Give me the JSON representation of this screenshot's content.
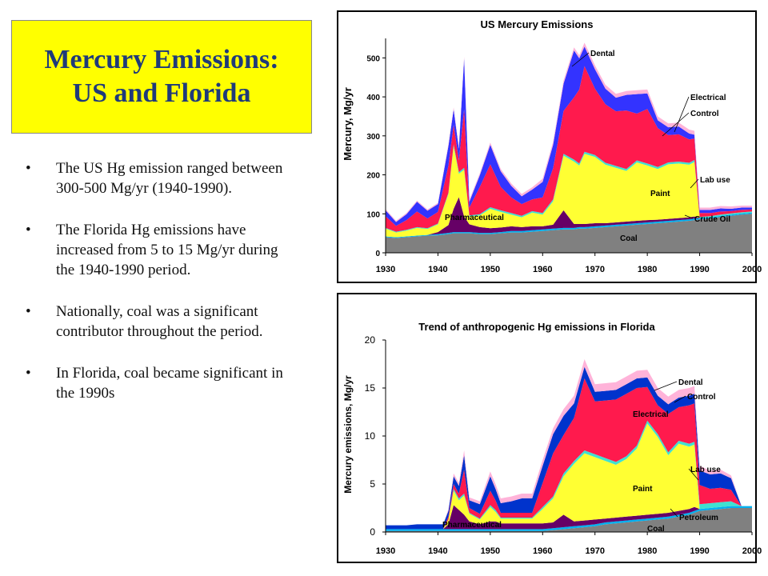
{
  "slide": {
    "title_line1": "Mercury Emissions:",
    "title_line2": "US and Florida",
    "bullets": [
      "The US Hg emission ranged between 300-500 Mg/yr (1940-1990).",
      "The Florida Hg emissions have increased from 5 to 15 Mg/yr during the 1940-1990 period.",
      "Nationally, coal was a significant contributor throughout the period.",
      "In Florida, coal became significant in the 1990s"
    ]
  },
  "chart_data": [
    {
      "type": "area",
      "stacked": true,
      "title": "US Mercury Emissions",
      "xlabel": "",
      "ylabel": "Mercury, Mg/yr",
      "xlim": [
        1930,
        2000
      ],
      "ylim": [
        0,
        550
      ],
      "xticks": [
        "1930",
        "1940",
        "1950",
        "1960",
        "1970",
        "1980",
        "1990",
        "2000"
      ],
      "yticks": [
        "0",
        "100",
        "200",
        "300",
        "400",
        "500"
      ],
      "grid": false,
      "x": [
        1930,
        1932,
        1934,
        1936,
        1938,
        1940,
        1942,
        1943,
        1944,
        1945,
        1946,
        1948,
        1950,
        1952,
        1954,
        1956,
        1958,
        1960,
        1962,
        1964,
        1966,
        1967,
        1968,
        1970,
        1972,
        1974,
        1976,
        1978,
        1980,
        1982,
        1984,
        1986,
        1988,
        1989,
        1990,
        1992,
        1994,
        1996,
        1998,
        2000
      ],
      "series": [
        {
          "name": "Coal",
          "color": "#808080",
          "values": [
            40,
            38,
            40,
            42,
            44,
            45,
            48,
            50,
            50,
            50,
            50,
            48,
            48,
            50,
            52,
            52,
            54,
            56,
            58,
            60,
            60,
            62,
            62,
            64,
            66,
            68,
            70,
            72,
            74,
            76,
            78,
            80,
            82,
            84,
            86,
            88,
            92,
            95,
            98,
            100
          ]
        },
        {
          "name": "Crude Oil",
          "color": "#00b0f0",
          "values": [
            2,
            2,
            2,
            2,
            2,
            3,
            3,
            3,
            3,
            3,
            3,
            3,
            3,
            3,
            4,
            4,
            4,
            4,
            4,
            4,
            4,
            4,
            4,
            4,
            4,
            4,
            4,
            4,
            4,
            4,
            4,
            4,
            4,
            4,
            3,
            3,
            3,
            3,
            3,
            3
          ]
        },
        {
          "name": "Pharmaceutical",
          "color": "#660066",
          "values": [
            0,
            0,
            0,
            0,
            0,
            5,
            20,
            60,
            90,
            40,
            20,
            15,
            12,
            12,
            12,
            10,
            10,
            8,
            10,
            45,
            10,
            8,
            8,
            8,
            6,
            6,
            6,
            6,
            6,
            5,
            5,
            5,
            5,
            5,
            0,
            0,
            0,
            0,
            0,
            0
          ]
        },
        {
          "name": "Paint",
          "color": "#ffff33",
          "values": [
            20,
            12,
            15,
            20,
            15,
            20,
            80,
            160,
            60,
            120,
            20,
            30,
            50,
            40,
            30,
            25,
            35,
            30,
            60,
            140,
            160,
            150,
            180,
            170,
            150,
            140,
            130,
            150,
            140,
            130,
            140,
            140,
            135,
            140,
            0,
            0,
            0,
            0,
            0,
            0
          ]
        },
        {
          "name": "Lab use",
          "color": "#40e0d0",
          "values": [
            2,
            2,
            2,
            2,
            2,
            2,
            3,
            5,
            4,
            5,
            3,
            3,
            4,
            4,
            4,
            4,
            4,
            4,
            5,
            5,
            5,
            5,
            5,
            5,
            5,
            5,
            5,
            5,
            5,
            5,
            5,
            5,
            5,
            5,
            3,
            3,
            3,
            3,
            3,
            3
          ]
        },
        {
          "name": "Control",
          "color": "#ff1a4d",
          "values": [
            30,
            15,
            25,
            40,
            25,
            30,
            70,
            50,
            30,
            150,
            20,
            70,
            110,
            60,
            40,
            30,
            30,
            40,
            80,
            110,
            160,
            190,
            220,
            170,
            150,
            140,
            150,
            120,
            140,
            100,
            70,
            70,
            60,
            55,
            10,
            8,
            8,
            6,
            6,
            5
          ]
        },
        {
          "name": "Electrical",
          "color": "#3333ff",
          "values": [
            15,
            10,
            15,
            25,
            20,
            20,
            50,
            40,
            30,
            130,
            15,
            30,
            50,
            40,
            30,
            20,
            25,
            40,
            60,
            70,
            120,
            80,
            50,
            50,
            40,
            35,
            40,
            50,
            40,
            20,
            20,
            20,
            15,
            10,
            8,
            8,
            8,
            6,
            6,
            5
          ]
        },
        {
          "name": "Dental",
          "color": "#ffb3d9",
          "values": [
            3,
            3,
            3,
            3,
            3,
            3,
            5,
            5,
            5,
            5,
            5,
            5,
            6,
            6,
            6,
            6,
            6,
            8,
            8,
            8,
            8,
            8,
            10,
            10,
            10,
            10,
            10,
            10,
            10,
            10,
            10,
            10,
            10,
            10,
            6,
            6,
            6,
            6,
            5,
            5
          ]
        }
      ]
    },
    {
      "type": "area",
      "stacked": true,
      "title": "Trend of anthropogenic Hg emissions in Florida",
      "xlabel": "",
      "ylabel": "Mercury emissions, Mg/yr",
      "xlim": [
        1930,
        2000
      ],
      "ylim": [
        0,
        20
      ],
      "xticks": [
        "1930",
        "1940",
        "1950",
        "1960",
        "1970",
        "1980",
        "1990",
        "2000"
      ],
      "yticks": [
        "0",
        "5",
        "10",
        "15",
        "20"
      ],
      "grid": false,
      "x": [
        1930,
        1932,
        1934,
        1936,
        1938,
        1940,
        1941,
        1942,
        1943,
        1944,
        1945,
        1946,
        1948,
        1950,
        1951,
        1952,
        1954,
        1956,
        1958,
        1960,
        1962,
        1964,
        1966,
        1968,
        1970,
        1972,
        1974,
        1976,
        1978,
        1980,
        1982,
        1984,
        1986,
        1988,
        1989,
        1990,
        1992,
        1994,
        1996,
        1998,
        2000
      ],
      "series": [
        {
          "name": "Coal",
          "color": "#808080",
          "values": [
            0.1,
            0.1,
            0.1,
            0.1,
            0.1,
            0.1,
            0.1,
            0.1,
            0.1,
            0.1,
            0.1,
            0.1,
            0.1,
            0.1,
            0.1,
            0.1,
            0.1,
            0.1,
            0.1,
            0.1,
            0.2,
            0.3,
            0.4,
            0.5,
            0.6,
            0.8,
            0.9,
            1.0,
            1.1,
            1.2,
            1.3,
            1.4,
            1.6,
            1.8,
            2.0,
            2.2,
            2.3,
            2.4,
            2.5,
            2.5,
            2.5
          ]
        },
        {
          "name": "Petroleum",
          "color": "#00b0f0",
          "values": [
            0.2,
            0.2,
            0.2,
            0.2,
            0.2,
            0.2,
            0.2,
            0.2,
            0.2,
            0.2,
            0.2,
            0.2,
            0.2,
            0.2,
            0.2,
            0.2,
            0.2,
            0.2,
            0.2,
            0.2,
            0.2,
            0.2,
            0.2,
            0.2,
            0.2,
            0.2,
            0.2,
            0.2,
            0.2,
            0.2,
            0.2,
            0.2,
            0.2,
            0.2,
            0.2,
            0.2,
            0.2,
            0.2,
            0.2,
            0.2,
            0.2
          ]
        },
        {
          "name": "Pharmaceutical",
          "color": "#660066",
          "values": [
            0,
            0,
            0,
            0,
            0,
            0,
            0,
            0.5,
            2.5,
            2.0,
            1.5,
            0.8,
            0.5,
            0.8,
            0.8,
            0.6,
            0.6,
            0.6,
            0.6,
            0.6,
            0.6,
            1.3,
            0.5,
            0.5,
            0.5,
            0.4,
            0.4,
            0.4,
            0.4,
            0.4,
            0.4,
            0.4,
            0.4,
            0.4,
            0.4,
            0,
            0,
            0,
            0,
            0,
            0
          ]
        },
        {
          "name": "Paint",
          "color": "#ffff33",
          "values": [
            0,
            0,
            0,
            0,
            0,
            0,
            0,
            0.5,
            1.5,
            1.0,
            2.0,
            0.8,
            0.5,
            1.5,
            1.0,
            0.5,
            0.5,
            0.5,
            0.5,
            1.5,
            2.5,
            4.0,
            6.0,
            7.0,
            6.5,
            6.0,
            5.5,
            6.0,
            7.0,
            9.5,
            8.0,
            6.0,
            7.0,
            6.5,
            6.5,
            0,
            0,
            0,
            0,
            0,
            0
          ]
        },
        {
          "name": "Lab use",
          "color": "#40e0d0",
          "values": [
            0,
            0,
            0,
            0,
            0,
            0,
            0,
            0,
            0.2,
            0.2,
            0.2,
            0.1,
            0.1,
            0.2,
            0.2,
            0.1,
            0.1,
            0.1,
            0.1,
            0.2,
            0.2,
            0.3,
            0.3,
            0.3,
            0.3,
            0.3,
            0.3,
            0.3,
            0.3,
            0.3,
            0.3,
            0.3,
            0.3,
            0.3,
            0.3,
            0.5,
            0.5,
            0.5,
            0.5,
            0,
            0
          ]
        },
        {
          "name": "Electrical",
          "color": "#ff1a4d",
          "values": [
            0,
            0,
            0,
            0,
            0,
            0,
            0,
            0.3,
            0.5,
            0.5,
            2.5,
            0.5,
            0.5,
            1.5,
            1.0,
            0.5,
            0.5,
            0.5,
            0.5,
            2.5,
            4.5,
            4.0,
            4.5,
            7.5,
            5.5,
            6.0,
            6.5,
            6.5,
            6.0,
            3.5,
            3.0,
            4.0,
            3.5,
            4.0,
            4.0,
            2.0,
            1.5,
            1.5,
            1.2,
            0,
            0
          ]
        },
        {
          "name": "Control",
          "color": "#0033cc",
          "values": [
            0.4,
            0.4,
            0.4,
            0.5,
            0.5,
            0.5,
            0.5,
            0.6,
            0.8,
            0.8,
            1.5,
            0.8,
            1.0,
            1.5,
            1.2,
            1.0,
            1.2,
            1.5,
            1.5,
            1.8,
            2.0,
            2.0,
            1.5,
            1.2,
            1.0,
            1.0,
            1.0,
            1.0,
            1.0,
            1.0,
            1.0,
            1.0,
            1.0,
            1.0,
            1.0,
            1.5,
            1.5,
            1.5,
            1.2,
            0,
            0
          ]
        },
        {
          "name": "Dental",
          "color": "#ffb3d9",
          "values": [
            0,
            0,
            0,
            0,
            0,
            0,
            0,
            0.2,
            0.3,
            0.3,
            0.5,
            0.3,
            0.3,
            0.5,
            0.5,
            0.5,
            0.5,
            0.5,
            0.5,
            0.6,
            0.6,
            0.7,
            0.8,
            0.8,
            0.8,
            0.8,
            0.8,
            0.8,
            0.8,
            0.8,
            0.8,
            0.8,
            0.8,
            0.8,
            0.8,
            0.5,
            0.4,
            0.4,
            0.3,
            0,
            0
          ]
        }
      ]
    }
  ],
  "chart_labels": [
    [
      {
        "text": "Dental",
        "series": "Dental"
      },
      {
        "text": "Electrical",
        "series": "Electrical"
      },
      {
        "text": "Control",
        "series": "Control"
      },
      {
        "text": "Lab use",
        "series": "Lab use"
      },
      {
        "text": "Paint",
        "series": "Paint"
      },
      {
        "text": "Pharmaceutical",
        "series": "Pharmaceutical"
      },
      {
        "text": "Crude Oil",
        "series": "Crude Oil"
      },
      {
        "text": "Coal",
        "series": "Coal"
      }
    ],
    [
      {
        "text": "Dental",
        "series": "Dental"
      },
      {
        "text": "Control",
        "series": "Control"
      },
      {
        "text": "Electrical",
        "series": "Electrical"
      },
      {
        "text": "Lab use",
        "series": "Lab use"
      },
      {
        "text": "Paint",
        "series": "Paint"
      },
      {
        "text": "Petroleum",
        "series": "Petroleum"
      },
      {
        "text": "Pharmaceutical",
        "series": "Pharmaceutical"
      },
      {
        "text": "Coal",
        "series": "Coal"
      }
    ]
  ]
}
